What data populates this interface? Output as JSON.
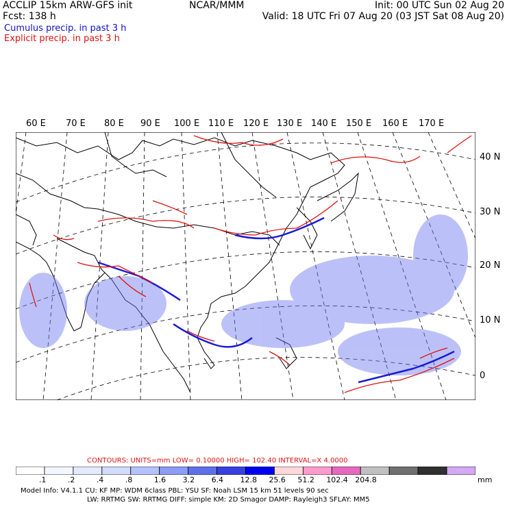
{
  "header": {
    "title": "ACCLIP 15km ARW-GFS init",
    "forecast": "Fcst:  138 h",
    "org": "NCAR/MMM",
    "init": "Init: 00 UTC Sun 02 Aug 20",
    "valid": "Valid: 18 UTC Fri 07 Aug 20 (03 JST Sat 08 Aug 20)",
    "cumulus": "Cumulus precip. in past 3 h",
    "explicit": "Explicit precip. in past 3 h"
  },
  "map": {
    "lon_labels": [
      "60 E",
      "70 E",
      "80 E",
      "90 E",
      "100 E",
      "110 E",
      "120 E",
      "130 E",
      "140 E",
      "150 E",
      "160 E",
      "170 E"
    ],
    "lat_labels": [
      "40 N",
      "30 N",
      "20 N",
      "10 N",
      "0"
    ]
  },
  "contours": {
    "label": "CONTOURS:  UNITS=mm  LOW= 0.10000      HIGH=  102.40      INTERVAL=X  4.0000"
  },
  "colorbar": {
    "colors": [
      "#ffffff",
      "#f4f6ff",
      "#e4eaff",
      "#d2dcff",
      "#b4c2ff",
      "#8c9cf6",
      "#6070ec",
      "#3840e0",
      "#0000ee",
      "#ffd8dc",
      "#ff9ccc",
      "#e868c0",
      "#c0c0c0",
      "#707070",
      "#303030",
      "#d4a8f4"
    ],
    "ticks": [
      ".1",
      ".2",
      ".4",
      ".8",
      "1.6",
      "3.2",
      "6.4",
      "12.8",
      "25.6",
      "51.2",
      "102.4",
      "204.8"
    ],
    "unit": "mm"
  },
  "footer": {
    "line1": "Model Info: V4.1.1     CU: KF      MP: WDM 6class   PBL: YSU        SF: Noah LSM      15 km    51 levels   90 sec",
    "line2": "LW: RRTMG    SW: RRTMG   DIFF: simple KM: 2D Smagor DAMP: Rayleigh3  SFLAY: MM5"
  }
}
